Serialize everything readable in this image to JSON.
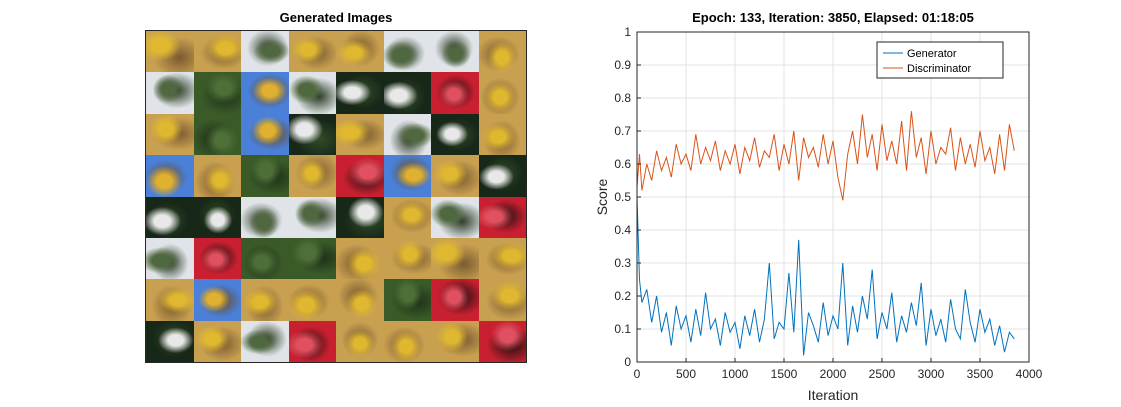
{
  "left_panel": {
    "title": "Generated Images",
    "grid": [
      [
        "flower",
        "flower",
        "cloud",
        "flower",
        "flower",
        "cloud",
        "cloud",
        "flower"
      ],
      [
        "cloud",
        "green",
        "blue",
        "cloud",
        "dark",
        "dark",
        "red",
        "flower"
      ],
      [
        "flower",
        "green",
        "blue",
        "dark",
        "flower",
        "cloud",
        "dark",
        "flower"
      ],
      [
        "blue",
        "flower",
        "green",
        "flower",
        "red",
        "blue",
        "flower",
        "dark"
      ],
      [
        "dark",
        "dark",
        "cloud",
        "cloud",
        "dark",
        "flower",
        "cloud",
        "red"
      ],
      [
        "cloud",
        "red",
        "green",
        "green",
        "flower",
        "flower",
        "flower",
        "flower"
      ],
      [
        "flower",
        "blue",
        "flower",
        "flower",
        "flower",
        "green",
        "red",
        "flower"
      ],
      [
        "dark",
        "flower",
        "cloud",
        "red",
        "flower",
        "flower",
        "flower",
        "red"
      ]
    ],
    "tile_colors": {
      "flower": [
        "#c8a050",
        "#e0b830",
        "#7a5a30"
      ],
      "cloud": [
        "#e0e4e8",
        "#506840",
        "#283820"
      ],
      "green": [
        "#3a5a28",
        "#4e7038",
        "#1e3018"
      ],
      "blue": [
        "#4a80d8",
        "#e0b030",
        "#6a4a20"
      ],
      "dark": [
        "#182818",
        "#e8e8e8",
        "#304a28"
      ],
      "red": [
        "#c82030",
        "#e05060",
        "#201010"
      ]
    }
  },
  "chart_data": {
    "type": "line",
    "title": "Epoch: 133, Iteration: 3850, Elapsed: 01:18:05",
    "xlabel": "Iteration",
    "ylabel": "Score",
    "xlim": [
      0,
      4000
    ],
    "ylim": [
      0,
      1
    ],
    "xticks": [
      "0",
      "500",
      "1000",
      "1500",
      "2000",
      "2500",
      "3000",
      "3500",
      "4000"
    ],
    "yticks": [
      "0",
      "0.1",
      "0.2",
      "0.3",
      "0.4",
      "0.5",
      "0.6",
      "0.7",
      "0.8",
      "0.9",
      "1"
    ],
    "grid": true,
    "legend_position": "top-right",
    "series": [
      {
        "name": "Generator",
        "color": "#0072BD",
        "x": [
          0,
          25,
          50,
          100,
          150,
          200,
          250,
          300,
          350,
          400,
          450,
          500,
          550,
          600,
          650,
          700,
          750,
          800,
          850,
          900,
          950,
          1000,
          1050,
          1100,
          1150,
          1200,
          1250,
          1300,
          1350,
          1400,
          1450,
          1500,
          1550,
          1600,
          1650,
          1700,
          1750,
          1800,
          1850,
          1900,
          1950,
          2000,
          2050,
          2100,
          2150,
          2200,
          2250,
          2300,
          2350,
          2400,
          2450,
          2500,
          2550,
          2600,
          2650,
          2700,
          2750,
          2800,
          2850,
          2900,
          2950,
          3000,
          3050,
          3100,
          3150,
          3200,
          3250,
          3300,
          3350,
          3400,
          3450,
          3500,
          3550,
          3600,
          3650,
          3700,
          3750,
          3800,
          3850
        ],
        "y": [
          0.5,
          0.25,
          0.18,
          0.22,
          0.12,
          0.2,
          0.09,
          0.15,
          0.05,
          0.17,
          0.1,
          0.14,
          0.06,
          0.16,
          0.08,
          0.21,
          0.1,
          0.13,
          0.05,
          0.15,
          0.09,
          0.12,
          0.04,
          0.14,
          0.08,
          0.16,
          0.06,
          0.13,
          0.3,
          0.07,
          0.12,
          0.1,
          0.27,
          0.09,
          0.37,
          0.02,
          0.15,
          0.11,
          0.06,
          0.18,
          0.08,
          0.14,
          0.1,
          0.3,
          0.05,
          0.17,
          0.09,
          0.2,
          0.13,
          0.28,
          0.07,
          0.15,
          0.1,
          0.21,
          0.06,
          0.14,
          0.09,
          0.18,
          0.11,
          0.24,
          0.05,
          0.16,
          0.08,
          0.13,
          0.06,
          0.19,
          0.1,
          0.07,
          0.22,
          0.12,
          0.06,
          0.16,
          0.09,
          0.13,
          0.05,
          0.11,
          0.03,
          0.09,
          0.07
        ]
      },
      {
        "name": "Discriminator",
        "color": "#D95319",
        "x": [
          0,
          25,
          50,
          100,
          150,
          200,
          250,
          300,
          350,
          400,
          450,
          500,
          550,
          600,
          650,
          700,
          750,
          800,
          850,
          900,
          950,
          1000,
          1050,
          1100,
          1150,
          1200,
          1250,
          1300,
          1350,
          1400,
          1450,
          1500,
          1550,
          1600,
          1650,
          1700,
          1750,
          1800,
          1850,
          1900,
          1950,
          2000,
          2050,
          2100,
          2150,
          2200,
          2250,
          2300,
          2350,
          2400,
          2450,
          2500,
          2550,
          2600,
          2650,
          2700,
          2750,
          2800,
          2850,
          2900,
          2950,
          3000,
          3050,
          3100,
          3150,
          3200,
          3250,
          3300,
          3350,
          3400,
          3450,
          3500,
          3550,
          3600,
          3650,
          3700,
          3750,
          3800,
          3850
        ],
        "y": [
          0.53,
          0.63,
          0.52,
          0.6,
          0.55,
          0.64,
          0.58,
          0.62,
          0.56,
          0.66,
          0.6,
          0.63,
          0.58,
          0.69,
          0.6,
          0.65,
          0.61,
          0.67,
          0.58,
          0.64,
          0.6,
          0.66,
          0.57,
          0.65,
          0.61,
          0.68,
          0.59,
          0.64,
          0.62,
          0.69,
          0.58,
          0.66,
          0.6,
          0.7,
          0.55,
          0.68,
          0.62,
          0.65,
          0.59,
          0.69,
          0.6,
          0.67,
          0.56,
          0.49,
          0.63,
          0.7,
          0.6,
          0.75,
          0.62,
          0.69,
          0.58,
          0.72,
          0.61,
          0.67,
          0.6,
          0.73,
          0.58,
          0.76,
          0.62,
          0.68,
          0.57,
          0.7,
          0.6,
          0.65,
          0.63,
          0.71,
          0.58,
          0.68,
          0.6,
          0.66,
          0.59,
          0.7,
          0.61,
          0.65,
          0.57,
          0.69,
          0.58,
          0.72,
          0.64
        ]
      }
    ]
  }
}
